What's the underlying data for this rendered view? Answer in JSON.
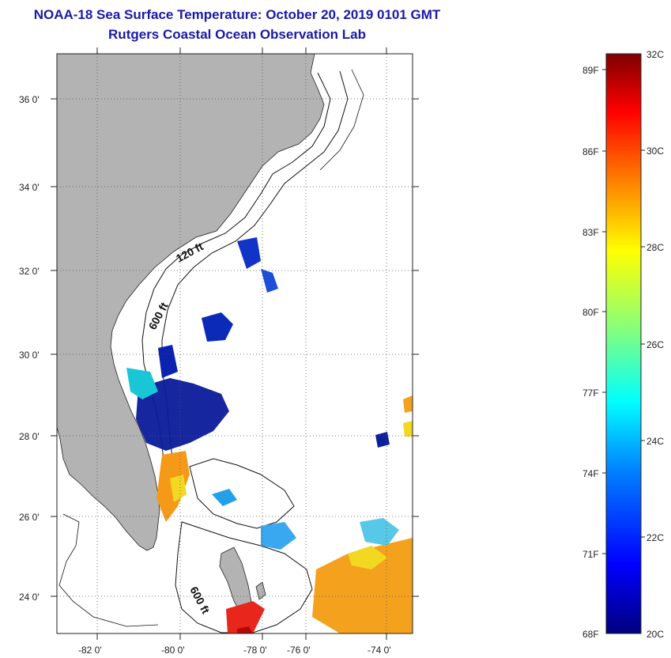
{
  "title": {
    "line1": "NOAA-18 Sea Surface Temperature:  October 20, 2019 0101 GMT",
    "line2": "Rutgers Coastal Ocean Observation Lab"
  },
  "map": {
    "lat_ticks": [
      "36 0'",
      "34 0'",
      "32 0'",
      "30 0'",
      "28 0'",
      "26 0'",
      "24 0'"
    ],
    "lon_ticks": [
      "-82 0'",
      "-80 0'",
      "-78 0'",
      "-76 0'",
      "-74 0'"
    ],
    "contour_labels": [
      "120 ft",
      "600 ft",
      "600 ft"
    ],
    "land_color": "#b3b3b3",
    "cloud_color": "#ffffff"
  },
  "colorbar": {
    "celsius": [
      "32C",
      "30C",
      "28C",
      "26C",
      "24C",
      "22C",
      "20C"
    ],
    "fahrenheit": [
      "89F",
      "86F",
      "83F",
      "80F",
      "77F",
      "74F",
      "71F",
      "68F"
    ],
    "colors": [
      "#7f0000",
      "#ff0000",
      "#ff8000",
      "#ffff00",
      "#80ff80",
      "#00ffff",
      "#0080ff",
      "#0000ff",
      "#00007f"
    ]
  }
}
